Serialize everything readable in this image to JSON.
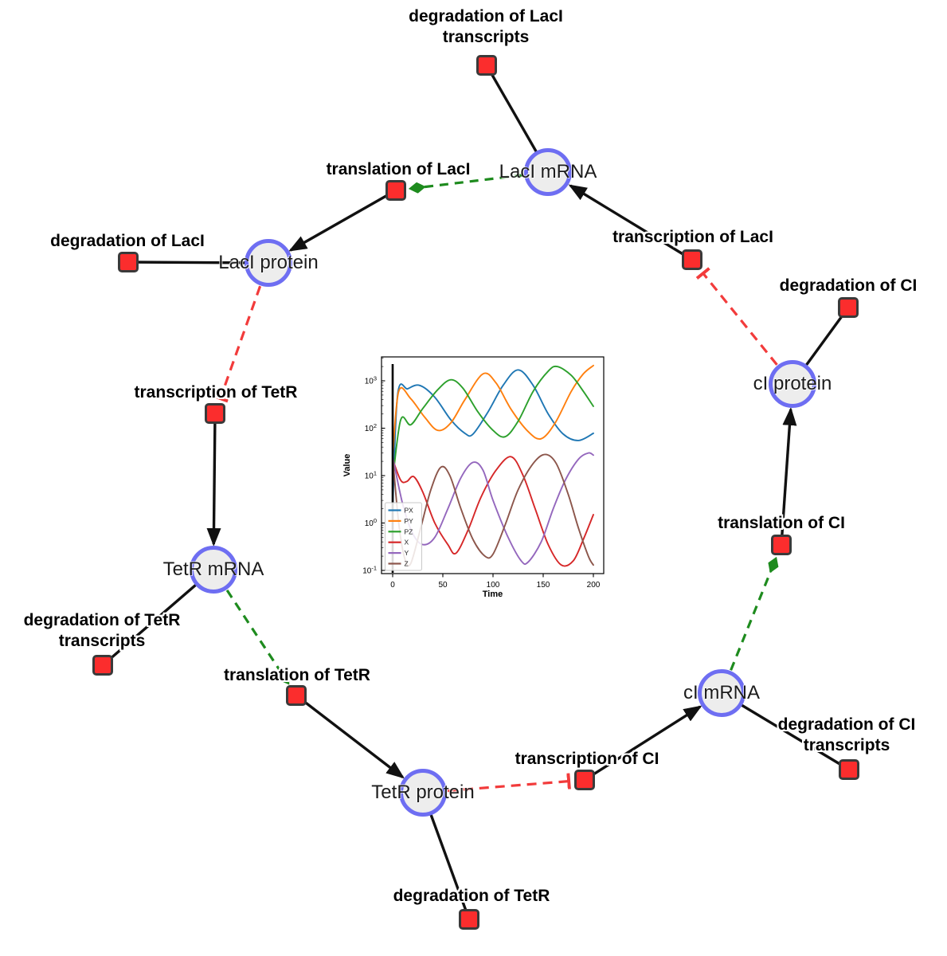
{
  "diagram": {
    "species": {
      "laci_mrna": {
        "label": "LacI mRNA"
      },
      "laci_protein": {
        "label": "LacI protein"
      },
      "tetr_mrna": {
        "label": "TetR mRNA"
      },
      "tetr_protein": {
        "label": "TetR protein"
      },
      "ci_mrna": {
        "label": "cI mRNA"
      },
      "ci_protein": {
        "label": "cI protein"
      }
    },
    "reactions": {
      "deg_laci_transcripts": {
        "label": "degradation of LacI transcripts"
      },
      "translation_laci": {
        "label": "translation of LacI"
      },
      "transcription_laci": {
        "label": "transcription of LacI"
      },
      "deg_laci": {
        "label": "degradation of LacI"
      },
      "deg_ci": {
        "label": "degradation of CI"
      },
      "transcription_tetr": {
        "label": "transcription of TetR"
      },
      "translation_ci": {
        "label": "translation of CI"
      },
      "deg_tetr_transcripts": {
        "label": "degradation of TetR transcripts"
      },
      "translation_tetr": {
        "label": "translation of TetR"
      },
      "transcription_ci": {
        "label": "transcription of CI"
      },
      "deg_ci_transcripts": {
        "label": "degradation of CI transcripts"
      },
      "deg_tetr": {
        "label": "degradation of TetR"
      }
    },
    "colors": {
      "species_fill": "#ededed",
      "species_border": "#6e6ef2",
      "reaction_fill": "#fb2d2d",
      "reaction_border": "#3a3a3a",
      "edge_reaction": "#111111",
      "edge_modifier_green": "#1e8b1e",
      "edge_inhibition_red": "#f23b3b"
    }
  },
  "chart_data": {
    "type": "line",
    "title": "",
    "xlabel": "Time",
    "ylabel": "Value",
    "x_ticks": [
      0,
      50,
      100,
      150,
      200
    ],
    "y_scale": "log",
    "y_tick_exponents": [
      -1,
      0,
      1,
      2,
      3
    ],
    "xlim": [
      -10,
      210
    ],
    "ylim": [
      0.1,
      3000
    ],
    "grid": false,
    "legend_position": "lower left",
    "annotations": [
      {
        "type": "vline",
        "x": 0,
        "color": "#000000"
      }
    ],
    "series": [
      {
        "name": "PX",
        "color": "#1f77b4",
        "points": [
          [
            0,
            2
          ],
          [
            5,
            520
          ],
          [
            15,
            680
          ],
          [
            27,
            800
          ],
          [
            42,
            450
          ],
          [
            58,
            150
          ],
          [
            72,
            78
          ],
          [
            80,
            75
          ],
          [
            95,
            220
          ],
          [
            110,
            800
          ],
          [
            125,
            1700
          ],
          [
            140,
            800
          ],
          [
            155,
            200
          ],
          [
            170,
            75
          ],
          [
            185,
            55
          ],
          [
            200,
            78
          ]
        ]
      },
      {
        "name": "PY",
        "color": "#ff7f0e",
        "points": [
          [
            0,
            25
          ],
          [
            6,
            600
          ],
          [
            18,
            420
          ],
          [
            32,
            170
          ],
          [
            45,
            90
          ],
          [
            58,
            130
          ],
          [
            72,
            400
          ],
          [
            90,
            1400
          ],
          [
            103,
            900
          ],
          [
            118,
            250
          ],
          [
            135,
            85
          ],
          [
            148,
            60
          ],
          [
            162,
            130
          ],
          [
            178,
            600
          ],
          [
            190,
            1400
          ],
          [
            200,
            2100
          ]
        ]
      },
      {
        "name": "PZ",
        "color": "#2ca02c",
        "points": [
          [
            0,
            8
          ],
          [
            8,
            150
          ],
          [
            18,
            118
          ],
          [
            30,
            260
          ],
          [
            45,
            650
          ],
          [
            58,
            1050
          ],
          [
            70,
            700
          ],
          [
            85,
            220
          ],
          [
            100,
            90
          ],
          [
            112,
            66
          ],
          [
            125,
            140
          ],
          [
            140,
            600
          ],
          [
            155,
            1600
          ],
          [
            164,
            2000
          ],
          [
            178,
            1300
          ],
          [
            190,
            600
          ],
          [
            200,
            290
          ]
        ]
      },
      {
        "name": "X",
        "color": "#d62728",
        "points": [
          [
            0,
            22
          ],
          [
            8,
            8
          ],
          [
            14,
            7.5
          ],
          [
            21,
            9.5
          ],
          [
            30,
            4.5
          ],
          [
            42,
            1
          ],
          [
            55,
            0.35
          ],
          [
            63,
            0.23
          ],
          [
            75,
            0.7
          ],
          [
            88,
            3.5
          ],
          [
            103,
            13
          ],
          [
            118,
            25
          ],
          [
            130,
            10
          ],
          [
            142,
            2
          ],
          [
            155,
            0.35
          ],
          [
            168,
            0.13
          ],
          [
            180,
            0.16
          ],
          [
            190,
            0.45
          ],
          [
            200,
            1.5
          ]
        ]
      },
      {
        "name": "Y",
        "color": "#9467bd",
        "points": [
          [
            0,
            25
          ],
          [
            10,
            2.5
          ],
          [
            20,
            0.6
          ],
          [
            30,
            0.35
          ],
          [
            42,
            0.5
          ],
          [
            55,
            2
          ],
          [
            68,
            9
          ],
          [
            80,
            19
          ],
          [
            90,
            13
          ],
          [
            100,
            3
          ],
          [
            115,
            0.5
          ],
          [
            128,
            0.16
          ],
          [
            135,
            0.15
          ],
          [
            148,
            0.4
          ],
          [
            160,
            2
          ],
          [
            172,
            8
          ],
          [
            185,
            22
          ],
          [
            195,
            30
          ],
          [
            200,
            27
          ]
        ]
      },
      {
        "name": "Z",
        "color": "#8c564b",
        "points": [
          [
            0,
            25
          ],
          [
            6,
            1
          ],
          [
            12,
            0.18
          ],
          [
            18,
            0.14
          ],
          [
            28,
            0.8
          ],
          [
            38,
            5
          ],
          [
            48,
            15
          ],
          [
            57,
            10
          ],
          [
            68,
            2
          ],
          [
            80,
            0.45
          ],
          [
            92,
            0.2
          ],
          [
            100,
            0.22
          ],
          [
            112,
            0.9
          ],
          [
            125,
            5
          ],
          [
            140,
            18
          ],
          [
            152,
            28
          ],
          [
            163,
            18
          ],
          [
            175,
            4
          ],
          [
            185,
            0.8
          ],
          [
            195,
            0.2
          ],
          [
            200,
            0.13
          ]
        ]
      }
    ]
  }
}
